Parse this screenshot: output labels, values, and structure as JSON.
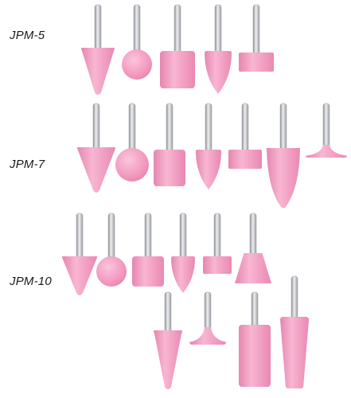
{
  "groups": [
    {
      "label": "JPM-5"
    },
    {
      "label": "JPM-7"
    },
    {
      "label": "JPM-10"
    }
  ],
  "colors": {
    "stone": "#f39ac0",
    "stone_dark": "#e37aa6",
    "stone_light": "#fbc6dc",
    "shaft": "#b9bcc0",
    "shaft_light": "#eeeff1",
    "shaft_dark": "#8d9095"
  },
  "icons": [
    "grinding-stone-cone",
    "grinding-stone-ball",
    "grinding-stone-cylinder",
    "grinding-stone-bullet",
    "grinding-stone-wheel",
    "grinding-stone-inverted-cone",
    "grinding-stone-tree"
  ]
}
